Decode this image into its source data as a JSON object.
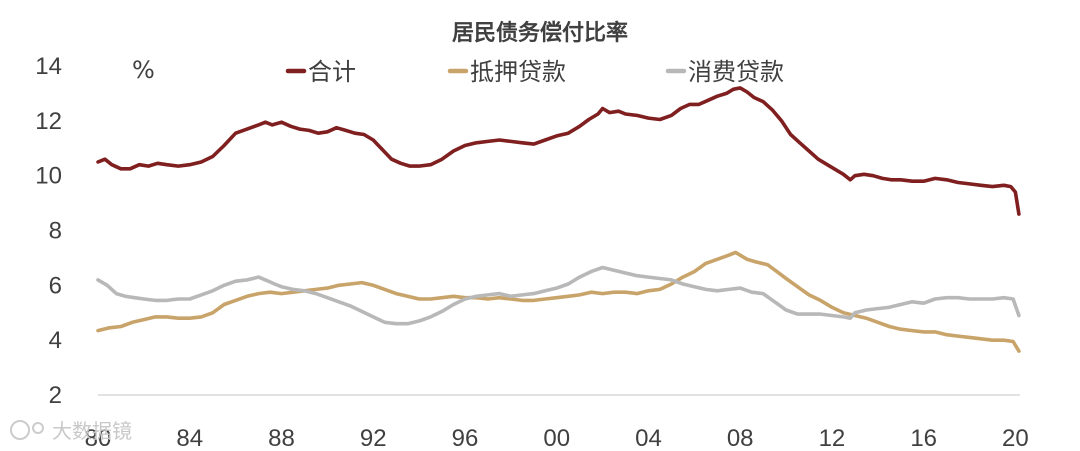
{
  "chart_data": {
    "type": "line",
    "title": "居民债务偿付比率",
    "unit_label": "%",
    "xlabel": "",
    "ylabel": "",
    "x_ticks": [
      "80",
      "84",
      "88",
      "92",
      "96",
      "00",
      "04",
      "08",
      "12",
      "16",
      "20"
    ],
    "x_tick_years": [
      1980,
      1984,
      1988,
      1992,
      1996,
      2000,
      2004,
      2008,
      2012,
      2016,
      2020
    ],
    "xlim": [
      1980,
      2020.2
    ],
    "ylim": [
      2,
      14
    ],
    "y_ticks": [
      2,
      4,
      6,
      8,
      10,
      12,
      14
    ],
    "grid": false,
    "legend_position": "top",
    "series": [
      {
        "name": "合计",
        "color": "#7f1f1f",
        "points": [
          [
            1980.0,
            10.5
          ],
          [
            1980.3,
            10.6
          ],
          [
            1980.6,
            10.4
          ],
          [
            1981.0,
            10.25
          ],
          [
            1981.4,
            10.25
          ],
          [
            1981.8,
            10.4
          ],
          [
            1982.2,
            10.35
          ],
          [
            1982.6,
            10.45
          ],
          [
            1983.0,
            10.4
          ],
          [
            1983.5,
            10.35
          ],
          [
            1984.0,
            10.4
          ],
          [
            1984.5,
            10.5
          ],
          [
            1985.0,
            10.7
          ],
          [
            1985.5,
            11.1
          ],
          [
            1986.0,
            11.55
          ],
          [
            1986.5,
            11.7
          ],
          [
            1987.0,
            11.85
          ],
          [
            1987.3,
            11.95
          ],
          [
            1987.6,
            11.85
          ],
          [
            1988.0,
            11.95
          ],
          [
            1988.4,
            11.8
          ],
          [
            1988.8,
            11.7
          ],
          [
            1989.2,
            11.65
          ],
          [
            1989.6,
            11.55
          ],
          [
            1990.0,
            11.6
          ],
          [
            1990.4,
            11.75
          ],
          [
            1990.8,
            11.65
          ],
          [
            1991.2,
            11.55
          ],
          [
            1991.6,
            11.5
          ],
          [
            1992.0,
            11.3
          ],
          [
            1992.4,
            10.95
          ],
          [
            1992.8,
            10.6
          ],
          [
            1993.2,
            10.45
          ],
          [
            1993.6,
            10.35
          ],
          [
            1994.0,
            10.35
          ],
          [
            1994.5,
            10.4
          ],
          [
            1995.0,
            10.6
          ],
          [
            1995.5,
            10.9
          ],
          [
            1996.0,
            11.1
          ],
          [
            1996.5,
            11.2
          ],
          [
            1997.0,
            11.25
          ],
          [
            1997.5,
            11.3
          ],
          [
            1998.0,
            11.25
          ],
          [
            1998.5,
            11.2
          ],
          [
            1999.0,
            11.15
          ],
          [
            1999.5,
            11.3
          ],
          [
            2000.0,
            11.45
          ],
          [
            2000.5,
            11.55
          ],
          [
            2001.0,
            11.8
          ],
          [
            2001.4,
            12.05
          ],
          [
            2001.8,
            12.25
          ],
          [
            2002.0,
            12.45
          ],
          [
            2002.3,
            12.3
          ],
          [
            2002.7,
            12.35
          ],
          [
            2003.0,
            12.25
          ],
          [
            2003.5,
            12.2
          ],
          [
            2004.0,
            12.1
          ],
          [
            2004.5,
            12.05
          ],
          [
            2005.0,
            12.2
          ],
          [
            2005.4,
            12.45
          ],
          [
            2005.8,
            12.6
          ],
          [
            2006.2,
            12.6
          ],
          [
            2006.6,
            12.75
          ],
          [
            2007.0,
            12.9
          ],
          [
            2007.4,
            13.0
          ],
          [
            2007.7,
            13.15
          ],
          [
            2008.0,
            13.2
          ],
          [
            2008.3,
            13.05
          ],
          [
            2008.6,
            12.85
          ],
          [
            2009.0,
            12.7
          ],
          [
            2009.4,
            12.4
          ],
          [
            2009.8,
            12.0
          ],
          [
            2010.2,
            11.5
          ],
          [
            2010.6,
            11.2
          ],
          [
            2011.0,
            10.9
          ],
          [
            2011.4,
            10.6
          ],
          [
            2011.8,
            10.4
          ],
          [
            2012.2,
            10.2
          ],
          [
            2012.5,
            10.05
          ],
          [
            2012.8,
            9.85
          ],
          [
            2013.0,
            10.0
          ],
          [
            2013.4,
            10.05
          ],
          [
            2013.8,
            10.0
          ],
          [
            2014.2,
            9.9
          ],
          [
            2014.6,
            9.85
          ],
          [
            2015.0,
            9.85
          ],
          [
            2015.5,
            9.8
          ],
          [
            2016.0,
            9.8
          ],
          [
            2016.5,
            9.9
          ],
          [
            2017.0,
            9.85
          ],
          [
            2017.5,
            9.75
          ],
          [
            2018.0,
            9.7
          ],
          [
            2018.5,
            9.65
          ],
          [
            2019.0,
            9.6
          ],
          [
            2019.5,
            9.65
          ],
          [
            2019.8,
            9.6
          ],
          [
            2020.0,
            9.4
          ],
          [
            2020.15,
            8.6
          ]
        ]
      },
      {
        "name": "抵押贷款",
        "color": "#c9a46a",
        "points": [
          [
            1980.0,
            4.35
          ],
          [
            1980.5,
            4.45
          ],
          [
            1981.0,
            4.5
          ],
          [
            1981.5,
            4.65
          ],
          [
            1982.0,
            4.75
          ],
          [
            1982.5,
            4.85
          ],
          [
            1983.0,
            4.85
          ],
          [
            1983.5,
            4.8
          ],
          [
            1984.0,
            4.8
          ],
          [
            1984.5,
            4.85
          ],
          [
            1985.0,
            5.0
          ],
          [
            1985.5,
            5.3
          ],
          [
            1986.0,
            5.45
          ],
          [
            1986.5,
            5.6
          ],
          [
            1987.0,
            5.7
          ],
          [
            1987.5,
            5.75
          ],
          [
            1988.0,
            5.7
          ],
          [
            1988.5,
            5.75
          ],
          [
            1989.0,
            5.8
          ],
          [
            1989.5,
            5.85
          ],
          [
            1990.0,
            5.9
          ],
          [
            1990.5,
            6.0
          ],
          [
            1991.0,
            6.05
          ],
          [
            1991.5,
            6.1
          ],
          [
            1992.0,
            6.0
          ],
          [
            1992.5,
            5.85
          ],
          [
            1993.0,
            5.7
          ],
          [
            1993.5,
            5.6
          ],
          [
            1994.0,
            5.5
          ],
          [
            1994.5,
            5.5
          ],
          [
            1995.0,
            5.55
          ],
          [
            1995.5,
            5.6
          ],
          [
            1996.0,
            5.55
          ],
          [
            1996.5,
            5.55
          ],
          [
            1997.0,
            5.5
          ],
          [
            1997.5,
            5.55
          ],
          [
            1998.0,
            5.5
          ],
          [
            1998.5,
            5.45
          ],
          [
            1999.0,
            5.45
          ],
          [
            1999.5,
            5.5
          ],
          [
            2000.0,
            5.55
          ],
          [
            2000.5,
            5.6
          ],
          [
            2001.0,
            5.65
          ],
          [
            2001.5,
            5.75
          ],
          [
            2002.0,
            5.7
          ],
          [
            2002.5,
            5.75
          ],
          [
            2003.0,
            5.75
          ],
          [
            2003.5,
            5.7
          ],
          [
            2004.0,
            5.8
          ],
          [
            2004.5,
            5.85
          ],
          [
            2005.0,
            6.05
          ],
          [
            2005.5,
            6.3
          ],
          [
            2006.0,
            6.5
          ],
          [
            2006.5,
            6.8
          ],
          [
            2007.0,
            6.95
          ],
          [
            2007.5,
            7.1
          ],
          [
            2007.8,
            7.2
          ],
          [
            2008.0,
            7.1
          ],
          [
            2008.3,
            6.95
          ],
          [
            2008.7,
            6.85
          ],
          [
            2009.2,
            6.75
          ],
          [
            2009.6,
            6.5
          ],
          [
            2010.0,
            6.25
          ],
          [
            2010.5,
            5.95
          ],
          [
            2011.0,
            5.65
          ],
          [
            2011.5,
            5.45
          ],
          [
            2012.0,
            5.2
          ],
          [
            2012.5,
            5.0
          ],
          [
            2013.0,
            4.9
          ],
          [
            2013.5,
            4.8
          ],
          [
            2014.0,
            4.65
          ],
          [
            2014.5,
            4.5
          ],
          [
            2015.0,
            4.4
          ],
          [
            2015.5,
            4.35
          ],
          [
            2016.0,
            4.3
          ],
          [
            2016.5,
            4.3
          ],
          [
            2017.0,
            4.2
          ],
          [
            2017.5,
            4.15
          ],
          [
            2018.0,
            4.1
          ],
          [
            2018.5,
            4.05
          ],
          [
            2019.0,
            4.0
          ],
          [
            2019.5,
            4.0
          ],
          [
            2019.9,
            3.95
          ],
          [
            2020.15,
            3.6
          ]
        ]
      },
      {
        "name": "消费贷款",
        "color": "#b8b8b8",
        "points": [
          [
            1980.0,
            6.2
          ],
          [
            1980.4,
            6.0
          ],
          [
            1980.8,
            5.7
          ],
          [
            1981.2,
            5.6
          ],
          [
            1981.6,
            5.55
          ],
          [
            1982.0,
            5.5
          ],
          [
            1982.5,
            5.45
          ],
          [
            1983.0,
            5.45
          ],
          [
            1983.5,
            5.5
          ],
          [
            1984.0,
            5.5
          ],
          [
            1984.5,
            5.65
          ],
          [
            1985.0,
            5.8
          ],
          [
            1985.5,
            6.0
          ],
          [
            1986.0,
            6.15
          ],
          [
            1986.5,
            6.2
          ],
          [
            1987.0,
            6.3
          ],
          [
            1987.3,
            6.2
          ],
          [
            1987.7,
            6.05
          ],
          [
            1988.0,
            5.95
          ],
          [
            1988.5,
            5.85
          ],
          [
            1989.0,
            5.8
          ],
          [
            1989.5,
            5.7
          ],
          [
            1990.0,
            5.55
          ],
          [
            1990.5,
            5.4
          ],
          [
            1991.0,
            5.25
          ],
          [
            1991.5,
            5.05
          ],
          [
            1992.0,
            4.85
          ],
          [
            1992.5,
            4.65
          ],
          [
            1993.0,
            4.6
          ],
          [
            1993.5,
            4.6
          ],
          [
            1994.0,
            4.7
          ],
          [
            1994.5,
            4.85
          ],
          [
            1995.0,
            5.05
          ],
          [
            1995.5,
            5.3
          ],
          [
            1996.0,
            5.5
          ],
          [
            1996.5,
            5.6
          ],
          [
            1997.0,
            5.65
          ],
          [
            1997.5,
            5.7
          ],
          [
            1998.0,
            5.6
          ],
          [
            1998.5,
            5.65
          ],
          [
            1999.0,
            5.7
          ],
          [
            1999.5,
            5.8
          ],
          [
            2000.0,
            5.9
          ],
          [
            2000.5,
            6.05
          ],
          [
            2001.0,
            6.3
          ],
          [
            2001.5,
            6.5
          ],
          [
            2002.0,
            6.65
          ],
          [
            2002.5,
            6.55
          ],
          [
            2003.0,
            6.45
          ],
          [
            2003.5,
            6.35
          ],
          [
            2004.0,
            6.3
          ],
          [
            2004.5,
            6.25
          ],
          [
            2005.0,
            6.2
          ],
          [
            2005.5,
            6.05
          ],
          [
            2006.0,
            5.95
          ],
          [
            2006.5,
            5.85
          ],
          [
            2007.0,
            5.8
          ],
          [
            2007.5,
            5.85
          ],
          [
            2008.0,
            5.9
          ],
          [
            2008.5,
            5.75
          ],
          [
            2009.0,
            5.7
          ],
          [
            2009.5,
            5.4
          ],
          [
            2010.0,
            5.1
          ],
          [
            2010.5,
            4.95
          ],
          [
            2011.0,
            4.95
          ],
          [
            2011.5,
            4.95
          ],
          [
            2012.0,
            4.9
          ],
          [
            2012.5,
            4.85
          ],
          [
            2012.8,
            4.8
          ],
          [
            2013.0,
            5.0
          ],
          [
            2013.5,
            5.1
          ],
          [
            2014.0,
            5.15
          ],
          [
            2014.5,
            5.2
          ],
          [
            2015.0,
            5.3
          ],
          [
            2015.5,
            5.4
          ],
          [
            2016.0,
            5.35
          ],
          [
            2016.5,
            5.5
          ],
          [
            2017.0,
            5.55
          ],
          [
            2017.5,
            5.55
          ],
          [
            2018.0,
            5.5
          ],
          [
            2018.5,
            5.5
          ],
          [
            2019.0,
            5.5
          ],
          [
            2019.5,
            5.55
          ],
          [
            2019.9,
            5.5
          ],
          [
            2020.15,
            4.9
          ]
        ]
      }
    ]
  },
  "watermark": "大数据镜"
}
